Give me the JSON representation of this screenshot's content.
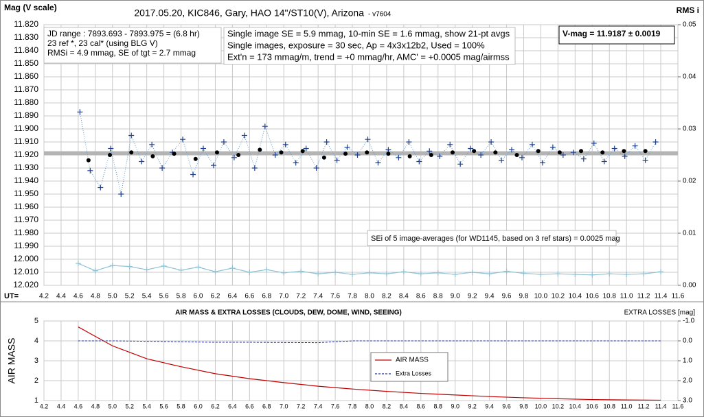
{
  "chart_data": [
    {
      "type": "scatter",
      "title": "2017.05.20,  KIC846,  Gary,  HAO 14\"/ST10(V),  Arizona",
      "subtitle": "- v7604",
      "y_label": "Mag (V scale)",
      "y2_label": "RMS i",
      "x_label": "UT=",
      "grid": true,
      "xlim": [
        4.2,
        11.6
      ],
      "xticks": [
        4.2,
        4.4,
        4.6,
        4.8,
        {
          "value": 5,
          "label": "5.0"
        },
        5.2,
        5.4,
        5.6,
        5.8,
        {
          "value": 6,
          "label": "6.0"
        },
        6.2,
        6.4,
        6.6,
        6.8,
        {
          "value": 7,
          "label": "7.0"
        },
        7.2,
        7.4,
        7.6,
        7.8,
        {
          "value": 8,
          "label": "8.0"
        },
        8.2,
        8.4,
        8.6,
        8.8,
        {
          "value": 9,
          "label": "9.0"
        },
        9.2,
        9.4,
        9.6,
        9.8,
        {
          "value": 10,
          "label": "10.0"
        },
        10.2,
        10.4,
        10.6,
        10.8,
        {
          "value": 11,
          "label": "11.0"
        },
        11.2,
        11.4,
        11.6
      ],
      "ylim": [
        12.02,
        11.82
      ],
      "yticks": [
        {
          "value": 11.82,
          "label": "11.820"
        },
        {
          "value": 11.83,
          "label": "11.830"
        },
        {
          "value": 11.84,
          "label": "11.840"
        },
        {
          "value": 11.85,
          "label": "11.850"
        },
        {
          "value": 11.86,
          "label": "11.860"
        },
        {
          "value": 11.87,
          "label": "11.870"
        },
        {
          "value": 11.88,
          "label": "11.880"
        },
        {
          "value": 11.89,
          "label": "11.890"
        },
        {
          "value": 11.9,
          "label": "11.900"
        },
        {
          "value": 11.91,
          "label": "11.910"
        },
        {
          "value": 11.92,
          "label": "11.920"
        },
        {
          "value": 11.93,
          "label": "11.930"
        },
        {
          "value": 11.94,
          "label": "11.940"
        },
        {
          "value": 11.95,
          "label": "11.950"
        },
        {
          "value": 11.96,
          "label": "11.960"
        },
        {
          "value": 11.97,
          "label": "11.970"
        },
        {
          "value": 11.98,
          "label": "11.980"
        },
        {
          "value": 11.99,
          "label": "11.990"
        },
        {
          "value": 12,
          "label": "12.000"
        },
        {
          "value": 12.01,
          "label": "12.010"
        },
        {
          "value": 12.02,
          "label": "12.020"
        }
      ],
      "y2lim": [
        0,
        0.05
      ],
      "y2ticks": [
        {
          "value": 0,
          "label": "0.00"
        },
        0.01,
        0.02,
        0.03,
        0.04,
        0.05
      ],
      "reference_line": {
        "value": 11.9187,
        "color": "#b4b4b4"
      },
      "annotations": [
        {
          "lines": [
            "JD range : 7893.693 - 7893.975  = (6.8 hr)",
            "23 ref *, 23 cal* (using BLG V)",
            "RMSi = 4.9 mmag, SE of tgt = 2.7 mmag"
          ]
        },
        {
          "lines": [
            "Single image SE = 5.9 mmag, 10-min SE = 1.6 mmag, show 21-pt avgs",
            "Single images, exposure = 30  sec, Ap = 4x3x12b2, Used = 100%",
            "Ext'n = 173 mmag/m, trend = +0 mmag/hr, AMC' = +0.0005 mag/airmss"
          ]
        },
        {
          "lines": [
            "V-mag = 11.9187 ± 0.0019"
          ]
        },
        {
          "lines": [
            "SEi of 5 image-averages (for WD1145, based on 3 ref stars) = 0.0025 mag"
          ]
        }
      ],
      "series": [
        {
          "color": "#1f3f8f",
          "marker": "cross",
          "line": "dotted",
          "line_color": "#5b9bd5",
          "x": [
            4.62,
            4.74,
            4.86,
            4.98,
            5.1,
            5.22,
            5.34,
            5.46,
            5.58,
            5.7,
            5.82,
            5.94,
            6.06,
            6.18,
            6.3,
            6.42,
            6.54,
            6.66,
            6.78,
            6.9,
            7.02,
            7.14,
            7.26,
            7.38,
            7.5,
            7.62,
            7.74,
            7.86,
            7.98,
            8.1,
            8.22,
            8.34,
            8.46,
            8.58,
            8.7,
            8.82,
            8.94,
            9.06,
            9.18,
            9.3,
            9.42,
            9.54,
            9.66,
            9.78,
            9.9,
            10.02,
            10.14,
            10.26,
            10.38,
            10.5,
            10.62,
            10.74,
            10.86,
            10.98,
            11.1,
            11.22,
            11.34
          ],
          "values": [
            11.887,
            11.932,
            11.945,
            11.915,
            11.95,
            11.905,
            11.925,
            11.912,
            11.93,
            11.918,
            11.908,
            11.935,
            11.915,
            11.928,
            11.91,
            11.922,
            11.905,
            11.93,
            11.898,
            11.92,
            11.912,
            11.926,
            11.915,
            11.93,
            11.91,
            11.924,
            11.914,
            11.92,
            11.908,
            11.926,
            11.916,
            11.922,
            11.91,
            11.925,
            11.917,
            11.921,
            11.912,
            11.927,
            11.915,
            11.92,
            11.91,
            11.924,
            11.916,
            11.922,
            11.912,
            11.926,
            11.914,
            11.92,
            11.918,
            11.923,
            11.911,
            11.925,
            11.915,
            11.921,
            11.913,
            11.924,
            11.91
          ]
        },
        {
          "color": "#000000",
          "marker": "dot",
          "x": [
            4.72,
            4.97,
            5.22,
            5.47,
            5.72,
            5.97,
            6.22,
            6.47,
            6.72,
            6.97,
            7.22,
            7.47,
            7.72,
            7.97,
            8.22,
            8.47,
            8.72,
            8.97,
            9.22,
            9.47,
            9.72,
            9.97,
            10.22,
            10.47,
            10.72,
            10.97,
            11.22
          ],
          "values": [
            11.924,
            11.92,
            11.918,
            11.921,
            11.919,
            11.923,
            11.918,
            11.92,
            11.916,
            11.918,
            11.917,
            11.922,
            11.919,
            11.918,
            11.919,
            11.921,
            11.92,
            11.918,
            11.917,
            11.918,
            11.92,
            11.917,
            11.918,
            11.917,
            11.918,
            11.917,
            11.917
          ]
        },
        {
          "color": "#8ec3d6",
          "marker": "cross",
          "line": "solid",
          "line_color": "#8ec3d6",
          "axis": "y2",
          "x": [
            4.6,
            4.8,
            5.0,
            5.2,
            5.4,
            5.6,
            5.8,
            6.0,
            6.2,
            6.4,
            6.6,
            6.8,
            7.0,
            7.2,
            7.4,
            7.6,
            7.8,
            8.0,
            8.2,
            8.4,
            8.6,
            8.8,
            9.0,
            9.2,
            9.4,
            9.6,
            9.8,
            10.0,
            10.2,
            10.4,
            10.6,
            10.8,
            11.0,
            11.2,
            11.4
          ],
          "values": [
            0.0042,
            0.0028,
            0.0038,
            0.0036,
            0.003,
            0.0037,
            0.0029,
            0.0035,
            0.0026,
            0.0033,
            0.0025,
            0.003,
            0.0024,
            0.0027,
            0.0022,
            0.0025,
            0.0021,
            0.0024,
            0.0022,
            0.0026,
            0.0022,
            0.0024,
            0.0021,
            0.0025,
            0.0022,
            0.0027,
            0.0023,
            0.0021,
            0.0022,
            0.0021,
            0.002,
            0.0022,
            0.0021,
            0.0022,
            0.0026
          ]
        }
      ]
    },
    {
      "type": "line",
      "title": "AIR MASS & EXTRA LOSSES (CLOUDS, DEW, DOME, WIND, SEEING)",
      "y_label": "AIR MASS",
      "y2_label": "EXTRA LOSSES [mag]",
      "grid": true,
      "legend": "center",
      "xlim": [
        4.2,
        11.6
      ],
      "xticks": [
        4.2,
        4.4,
        4.6,
        4.8,
        {
          "value": 5,
          "label": "5.0"
        },
        5.2,
        5.4,
        5.6,
        5.8,
        {
          "value": 6,
          "label": "6.0"
        },
        6.2,
        6.4,
        6.6,
        6.8,
        {
          "value": 7,
          "label": "7.0"
        },
        7.2,
        7.4,
        7.6,
        7.8,
        {
          "value": 8,
          "label": "8.0"
        },
        8.2,
        8.4,
        8.6,
        8.8,
        {
          "value": 9,
          "label": "9.0"
        },
        9.2,
        9.4,
        9.6,
        9.8,
        {
          "value": 10,
          "label": "10.0"
        },
        10.2,
        10.4,
        10.6,
        10.8,
        {
          "value": 11,
          "label": "11.0"
        },
        11.2,
        11.4,
        11.6
      ],
      "ylim": [
        1,
        5
      ],
      "yticks": [
        1,
        2,
        3,
        4,
        5
      ],
      "y2lim": [
        3,
        -1
      ],
      "y2ticks": [
        {
          "value": -1,
          "label": "-1.0"
        },
        {
          "value": 0,
          "label": "0.0"
        },
        {
          "value": 1,
          "label": "1.0"
        },
        {
          "value": 2,
          "label": "2.0"
        },
        {
          "value": 3,
          "label": "3.0"
        }
      ],
      "series": [
        {
          "name": "AIR MASS",
          "color": "#c00000",
          "line": "solid",
          "x": [
            4.6,
            5.0,
            5.4,
            5.8,
            6.2,
            6.6,
            7.0,
            7.4,
            7.8,
            8.2,
            8.6,
            9.0,
            9.4,
            9.8,
            10.2,
            10.6,
            11.0,
            11.4
          ],
          "values": [
            4.7,
            3.75,
            3.1,
            2.7,
            2.35,
            2.1,
            1.9,
            1.72,
            1.58,
            1.46,
            1.36,
            1.28,
            1.2,
            1.14,
            1.09,
            1.05,
            1.03,
            1.02
          ]
        },
        {
          "name": "Extra Losses",
          "color": "#1f2fa0",
          "line": "dashed",
          "axis": "y2",
          "x": [
            4.6,
            5.0,
            5.4,
            5.8,
            6.2,
            6.6,
            7.0,
            7.4,
            7.8,
            8.2,
            8.6,
            9.0,
            9.4,
            9.8,
            10.2,
            10.6,
            11.0,
            11.4
          ],
          "values": [
            0.0,
            0.0,
            0.02,
            0.05,
            0.07,
            0.07,
            0.08,
            0.09,
            0.0,
            0.0,
            0.0,
            0.0,
            0.0,
            0.0,
            0.0,
            0.0,
            0.0,
            0.0
          ]
        }
      ]
    }
  ]
}
